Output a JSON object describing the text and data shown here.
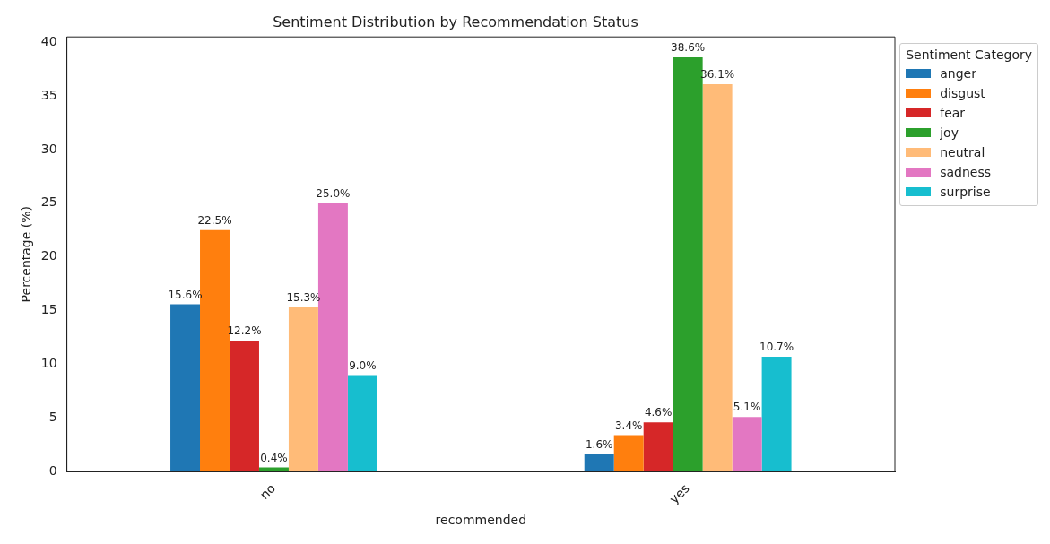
{
  "chart_data": {
    "type": "bar",
    "title": "Sentiment Distribution by Recommendation Status",
    "xlabel": "recommended",
    "ylabel": "Percentage (%)",
    "legend_title": "Sentiment Category",
    "legend": "top right",
    "grid": false,
    "categories": [
      "no",
      "yes"
    ],
    "ylim": [
      0,
      40.5
    ],
    "yticks": [
      0,
      5,
      10,
      15,
      20,
      25,
      30,
      35,
      40
    ],
    "series": [
      {
        "name": "anger",
        "color": "#1f77b4",
        "values": [
          15.6,
          1.6
        ],
        "value_labels": [
          "15.6%",
          "1.6%"
        ]
      },
      {
        "name": "disgust",
        "color": "#ff7f0e",
        "values": [
          22.5,
          3.4
        ],
        "value_labels": [
          "22.5%",
          "3.4%"
        ]
      },
      {
        "name": "fear",
        "color": "#d62728",
        "values": [
          12.2,
          4.6
        ],
        "value_labels": [
          "12.2%",
          "4.6%"
        ]
      },
      {
        "name": "joy",
        "color": "#2ca02c",
        "values": [
          0.4,
          38.6
        ],
        "value_labels": [
          "0.4%",
          "38.6%"
        ]
      },
      {
        "name": "neutral",
        "color": "#ffbb78",
        "values": [
          15.3,
          36.1
        ],
        "value_labels": [
          "15.3%",
          "36.1%"
        ]
      },
      {
        "name": "sadness",
        "color": "#e377c2",
        "values": [
          25.0,
          5.1
        ],
        "value_labels": [
          "25.0%",
          "5.1%"
        ]
      },
      {
        "name": "surprise",
        "color": "#17becf",
        "values": [
          9.0,
          10.7
        ],
        "value_labels": [
          "9.0%",
          "10.7%"
        ]
      }
    ]
  }
}
